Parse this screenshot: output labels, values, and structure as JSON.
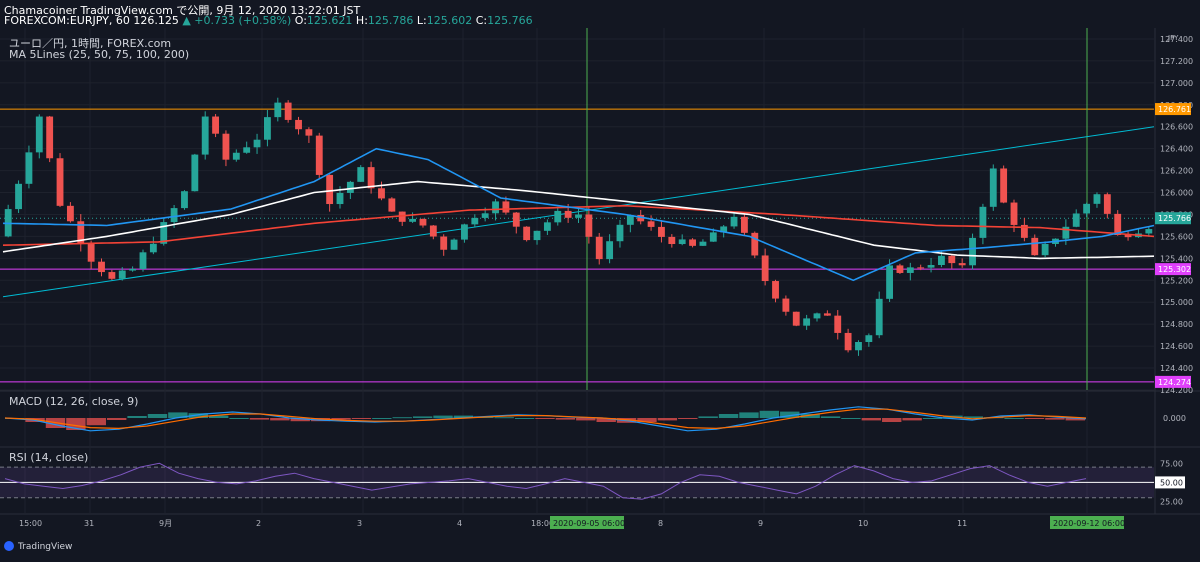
{
  "header": {
    "line1": "Chamacoiner TradingView.com で公開, 9月 12, 2020 13:22:01 JST",
    "symbol": "FOREXCOM:EURJPY, 60",
    "last": "126.125",
    "change": "▲ +0.733 (+0.58%)",
    "o_label": "O:",
    "o": "125.621",
    "h_label": "H:",
    "h": "125.786",
    "l_label": "L:",
    "l": "125.602",
    "c_label": "C:",
    "c": "125.766"
  },
  "pane_labels": {
    "title": "ユーロ／円, 1時間, FOREX.com",
    "ma": "MA 5Lines (25, 50, 75, 100, 200)",
    "macd": "MACD (12, 26, close, 9)",
    "rsi": "RSI (14, close)"
  },
  "brand": "TradingView",
  "colors": {
    "background": "#131722",
    "up": "#26a69a",
    "down": "#ef5350",
    "ma_blue": "#2196f3",
    "ma_white": "#ffffff",
    "ma_red": "#f44336",
    "trend": "#00bcd4",
    "orange": "#ff9800",
    "magenta": "#e040fb",
    "green_marker": "#4caf50",
    "rsi": "#7e57c2"
  },
  "chart_data": {
    "type": "candlestick",
    "price_axis": {
      "unit": "JPY",
      "range": [
        124.2,
        127.5
      ],
      "ticks": [
        "127.400",
        "127.200",
        "127.000",
        "126.800",
        "126.600",
        "126.400",
        "126.200",
        "126.000",
        "125.800",
        "125.600",
        "125.400",
        "125.200",
        "125.000",
        "124.800",
        "124.600",
        "124.400",
        "124.200"
      ]
    },
    "price_labels": [
      {
        "value": 126.761,
        "text": "126.761",
        "color": "#ff9800"
      },
      {
        "value": 125.766,
        "text": "125.766",
        "color": "#26a69a"
      },
      {
        "value": 125.302,
        "text": "125.302",
        "color": "#e040fb"
      },
      {
        "value": 124.274,
        "text": "124.274",
        "color": "#e040fb"
      }
    ],
    "horizontal_lines": [
      {
        "value": 126.761,
        "color": "#ff9800"
      },
      {
        "value": 125.302,
        "color": "#e040fb"
      },
      {
        "value": 124.274,
        "color": "#e040fb"
      }
    ],
    "vertical_markers": [
      "2020-09-05 06:00",
      "2020-09-12 06:00"
    ],
    "trend_line": {
      "from": 125.05,
      "to": 126.6
    },
    "time_axis": [
      "15:00",
      "31",
      "9月",
      "2",
      "3",
      "4",
      "18:00",
      "2020-09-05  06:00",
      "8",
      "9",
      "10",
      "11",
      "2020-09-12  06:00"
    ],
    "close_path": [
      [
        0,
        125.6
      ],
      [
        2,
        126.1
      ],
      [
        4,
        126.7
      ],
      [
        6,
        125.9
      ],
      [
        9,
        125.4
      ],
      [
        11,
        125.2
      ],
      [
        13,
        125.3
      ],
      [
        16,
        125.7
      ],
      [
        18,
        126.0
      ],
      [
        20,
        126.7
      ],
      [
        22,
        126.3
      ],
      [
        25,
        126.5
      ],
      [
        27,
        126.8
      ],
      [
        30,
        126.5
      ],
      [
        32,
        125.9
      ],
      [
        35,
        126.2
      ],
      [
        38,
        125.8
      ],
      [
        41,
        125.7
      ],
      [
        43,
        125.5
      ],
      [
        46,
        125.8
      ],
      [
        48,
        125.9
      ],
      [
        51,
        125.6
      ],
      [
        54,
        125.8
      ],
      [
        56,
        125.8
      ],
      [
        58,
        125.4
      ],
      [
        61,
        125.8
      ],
      [
        64,
        125.6
      ],
      [
        67,
        125.5
      ],
      [
        69,
        125.6
      ],
      [
        71,
        125.8
      ],
      [
        74,
        125.2
      ],
      [
        77,
        124.8
      ],
      [
        80,
        124.9
      ],
      [
        82,
        124.6
      ],
      [
        84,
        124.7
      ],
      [
        86,
        125.3
      ],
      [
        88,
        125.3
      ],
      [
        91,
        125.4
      ],
      [
        93,
        125.3
      ],
      [
        96,
        126.2
      ],
      [
        97,
        125.9
      ],
      [
        100,
        125.4
      ],
      [
        103,
        125.7
      ],
      [
        106,
        126.0
      ],
      [
        108,
        125.6
      ],
      [
        111,
        125.7
      ]
    ],
    "ma_blue": [
      [
        0,
        125.72
      ],
      [
        10,
        125.7
      ],
      [
        22,
        125.85
      ],
      [
        30,
        126.1
      ],
      [
        36,
        126.4
      ],
      [
        41,
        126.3
      ],
      [
        48,
        125.95
      ],
      [
        60,
        125.8
      ],
      [
        72,
        125.6
      ],
      [
        82,
        125.2
      ],
      [
        88,
        125.45
      ],
      [
        95,
        125.5
      ],
      [
        101,
        125.55
      ],
      [
        106,
        125.6
      ],
      [
        111,
        125.7
      ]
    ],
    "ma_white": [
      [
        0,
        125.46
      ],
      [
        10,
        125.6
      ],
      [
        22,
        125.8
      ],
      [
        30,
        126.0
      ],
      [
        40,
        126.1
      ],
      [
        50,
        126.02
      ],
      [
        60,
        125.92
      ],
      [
        72,
        125.8
      ],
      [
        84,
        125.52
      ],
      [
        92,
        125.43
      ],
      [
        100,
        125.4
      ],
      [
        106,
        125.41
      ],
      [
        111,
        125.42
      ]
    ],
    "ma_red": [
      [
        0,
        125.52
      ],
      [
        15,
        125.55
      ],
      [
        30,
        125.72
      ],
      [
        45,
        125.84
      ],
      [
        60,
        125.88
      ],
      [
        75,
        125.8
      ],
      [
        90,
        125.7
      ],
      [
        100,
        125.68
      ],
      [
        111,
        125.6
      ]
    ],
    "macd": {
      "ticks": [
        "0.000"
      ],
      "hist": [
        0,
        -0.1,
        -0.25,
        -0.3,
        -0.18,
        -0.05,
        0.05,
        0.1,
        0.14,
        0.12,
        0.06,
        0,
        -0.04,
        -0.06,
        -0.08,
        -0.08,
        -0.04,
        -0.02,
        0,
        0.02,
        0.04,
        0.06,
        0.06,
        0.04,
        0.02,
        0,
        -0.02,
        -0.04,
        -0.06,
        -0.1,
        -0.12,
        -0.1,
        -0.06,
        -0.02,
        0.04,
        0.1,
        0.14,
        0.18,
        0.16,
        0.1,
        0.04,
        0,
        -0.06,
        -0.1,
        -0.06,
        0,
        0.06,
        0.04,
        0.02,
        0,
        -0.02,
        -0.04,
        -0.06
      ],
      "line": [
        0,
        -0.05,
        -0.2,
        -0.32,
        -0.28,
        -0.15,
        0,
        0.1,
        0.15,
        0.1,
        0,
        -0.05,
        -0.08,
        -0.1,
        -0.08,
        -0.04,
        0,
        0.04,
        0.08,
        0.06,
        0.02,
        0,
        -0.08,
        -0.2,
        -0.32,
        -0.28,
        -0.15,
        0,
        0.1,
        0.2,
        0.28,
        0.22,
        0.1,
        0,
        -0.05,
        0.05,
        0.08,
        0.02,
        -0.02
      ],
      "signal": [
        0,
        -0.03,
        -0.14,
        -0.24,
        -0.26,
        -0.2,
        -0.08,
        0.04,
        0.1,
        0.1,
        0.04,
        -0.02,
        -0.06,
        -0.08,
        -0.08,
        -0.05,
        -0.01,
        0.03,
        0.06,
        0.06,
        0.03,
        0,
        -0.05,
        -0.14,
        -0.24,
        -0.26,
        -0.2,
        -0.08,
        0.04,
        0.14,
        0.22,
        0.22,
        0.14,
        0.05,
        -0.02,
        0.02,
        0.06,
        0.04,
        0
      ]
    },
    "rsi": {
      "ticks": [
        "75.00",
        "50.00",
        "25.00"
      ],
      "band": [
        30,
        70
      ],
      "values": [
        55,
        48,
        45,
        42,
        46,
        52,
        60,
        70,
        75,
        62,
        55,
        50,
        48,
        52,
        58,
        62,
        55,
        50,
        45,
        40,
        44,
        48,
        50,
        52,
        55,
        50,
        45,
        42,
        48,
        55,
        50,
        45,
        30,
        28,
        35,
        50,
        60,
        58,
        50,
        45,
        40,
        35,
        45,
        60,
        72,
        65,
        55,
        50,
        52,
        60,
        68,
        72,
        60,
        50,
        45,
        50,
        55
      ]
    }
  }
}
